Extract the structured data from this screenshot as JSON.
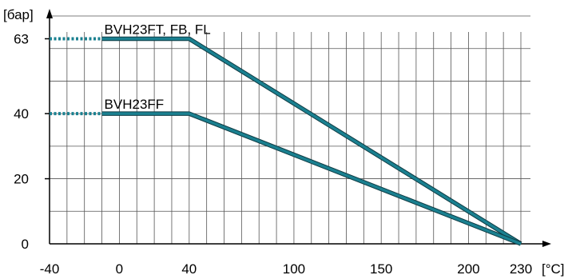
{
  "chart_data": {
    "type": "line",
    "title": "",
    "ylabel": "[бар]",
    "xlabel": "[°C]",
    "xlim": [
      -40,
      230
    ],
    "ylim": [
      0,
      70
    ],
    "x_ticks": [
      {
        "value": -40,
        "label": "-40"
      },
      {
        "value": 0,
        "label": "0"
      },
      {
        "value": 40,
        "label": "40"
      },
      {
        "value": 100,
        "label": "100"
      },
      {
        "value": 150,
        "label": "150"
      },
      {
        "value": 200,
        "label": "200"
      },
      {
        "value": 230,
        "label": "230"
      }
    ],
    "y_ticks": [
      {
        "value": 0,
        "label": "0"
      },
      {
        "value": 20,
        "label": "20"
      },
      {
        "value": 40,
        "label": "40"
      },
      {
        "value": 63,
        "label": "63"
      }
    ],
    "grid": true,
    "series": [
      {
        "name": "BVH23FT, FB, FL",
        "color": "#1a8090",
        "dotted": {
          "x": [
            -40,
            -10
          ],
          "y": [
            63,
            63
          ]
        },
        "x": [
          -10,
          40,
          230
        ],
        "y": [
          63,
          63,
          0
        ]
      },
      {
        "name": "BVH23FF",
        "color": "#1a8090",
        "dotted": {
          "x": [
            -40,
            -10
          ],
          "y": [
            40,
            40
          ]
        },
        "x": [
          -10,
          40,
          230
        ],
        "y": [
          40,
          40,
          0
        ]
      }
    ]
  }
}
